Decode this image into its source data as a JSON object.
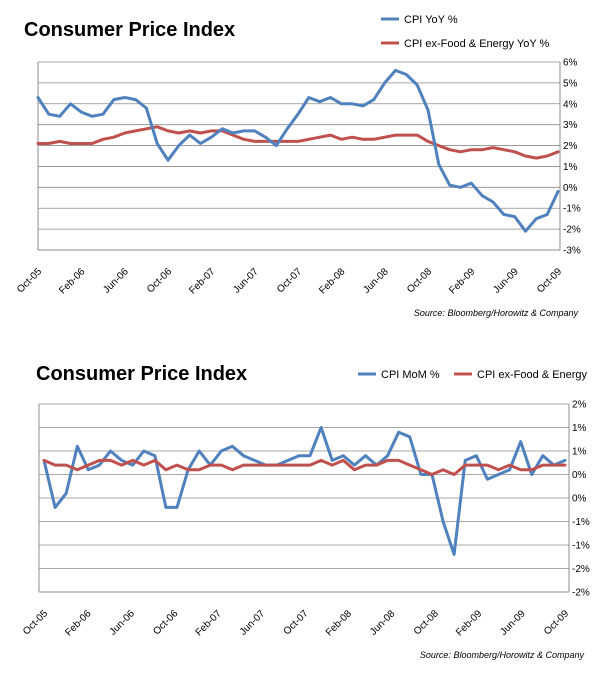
{
  "chart_data": [
    {
      "type": "line",
      "title": "Consumer Price Index",
      "source": "Source: Bloomberg/Horowitz & Company",
      "x_tick_labels": [
        "Oct-05",
        "Feb-06",
        "Jun-06",
        "Oct-06",
        "Feb-07",
        "Jun-07",
        "Oct-07",
        "Feb-08",
        "Jun-08",
        "Oct-08",
        "Feb-09",
        "Jun-09",
        "Oct-09"
      ],
      "y_tick_labels": [
        "6%",
        "5%",
        "4%",
        "3%",
        "2%",
        "1%",
        "0%",
        "-1%",
        "-2%",
        "-3%"
      ],
      "ylim": [
        -3,
        6
      ],
      "grid": true,
      "legend_position": "top-right",
      "series": [
        {
          "name": "CPI YoY %",
          "color": "#4f81bd",
          "values": [
            4.3,
            3.5,
            3.4,
            4.0,
            3.6,
            3.4,
            3.5,
            4.2,
            4.3,
            4.2,
            3.8,
            2.1,
            1.3,
            2.0,
            2.5,
            2.1,
            2.4,
            2.8,
            2.6,
            2.7,
            2.7,
            2.4,
            2.0,
            2.8,
            3.5,
            4.3,
            4.1,
            4.3,
            4.0,
            4.0,
            3.9,
            4.2,
            5.0,
            5.6,
            5.4,
            4.9,
            3.7,
            1.1,
            0.1,
            0.0,
            0.2,
            -0.4,
            -0.7,
            -1.3,
            -1.4,
            -2.1,
            -1.5,
            -1.3,
            -0.2
          ]
        },
        {
          "name": "CPI ex-Food & Energy YoY %",
          "color": "#c0504d",
          "values": [
            2.1,
            2.1,
            2.2,
            2.1,
            2.1,
            2.1,
            2.3,
            2.4,
            2.6,
            2.7,
            2.8,
            2.9,
            2.7,
            2.6,
            2.7,
            2.6,
            2.7,
            2.7,
            2.5,
            2.3,
            2.2,
            2.2,
            2.2,
            2.2,
            2.2,
            2.3,
            2.4,
            2.5,
            2.3,
            2.4,
            2.3,
            2.3,
            2.4,
            2.5,
            2.5,
            2.5,
            2.2,
            2.0,
            1.8,
            1.7,
            1.8,
            1.8,
            1.9,
            1.8,
            1.7,
            1.5,
            1.4,
            1.5,
            1.7
          ]
        }
      ]
    },
    {
      "type": "line",
      "title": "Consumer Price Index",
      "source": "Source: Bloomberg/Horowitz & Company",
      "x_tick_labels": [
        "Oct-05",
        "Feb-06",
        "Jun-06",
        "Oct-06",
        "Feb-07",
        "Jun-07",
        "Oct-07",
        "Feb-08",
        "Jun-08",
        "Oct-08",
        "Feb-09",
        "Jun-09",
        "Oct-09"
      ],
      "y_tick_labels": [
        "2%",
        "1%",
        "1%",
        "0%",
        "0%",
        "-1%",
        "-1%",
        "-2%",
        "-2%"
      ],
      "y_tick_values": [
        1.5,
        1.0,
        0.5,
        0.0,
        -0.5,
        -1.0,
        -1.5,
        -2.0,
        -2.5
      ],
      "ylim": [
        -2.5,
        1.5
      ],
      "grid": true,
      "legend_position": "top-right",
      "series": [
        {
          "name": "CPI MoM %",
          "color": "#4f81bd",
          "values": [
            0.3,
            -0.7,
            -0.4,
            0.6,
            0.1,
            0.2,
            0.5,
            0.3,
            0.2,
            0.5,
            0.4,
            -0.7,
            -0.7,
            0.1,
            0.5,
            0.2,
            0.5,
            0.6,
            0.4,
            0.3,
            0.2,
            0.2,
            0.3,
            0.4,
            0.4,
            1.0,
            0.3,
            0.4,
            0.2,
            0.4,
            0.2,
            0.4,
            0.9,
            0.8,
            0.0,
            0.0,
            -1.0,
            -1.7,
            0.3,
            0.4,
            -0.1,
            0.0,
            0.1,
            0.7,
            0.0,
            0.4,
            0.2,
            0.3
          ]
        },
        {
          "name": "CPI ex-Food & Energy",
          "color": "#c0504d",
          "values": [
            0.3,
            0.2,
            0.2,
            0.1,
            0.2,
            0.3,
            0.3,
            0.2,
            0.3,
            0.2,
            0.3,
            0.1,
            0.2,
            0.1,
            0.1,
            0.2,
            0.2,
            0.1,
            0.2,
            0.2,
            0.2,
            0.2,
            0.2,
            0.2,
            0.2,
            0.3,
            0.2,
            0.3,
            0.1,
            0.2,
            0.2,
            0.3,
            0.3,
            0.2,
            0.1,
            0.0,
            0.1,
            0.0,
            0.2,
            0.2,
            0.2,
            0.1,
            0.2,
            0.1,
            0.1,
            0.2,
            0.2,
            0.2
          ]
        }
      ]
    }
  ]
}
